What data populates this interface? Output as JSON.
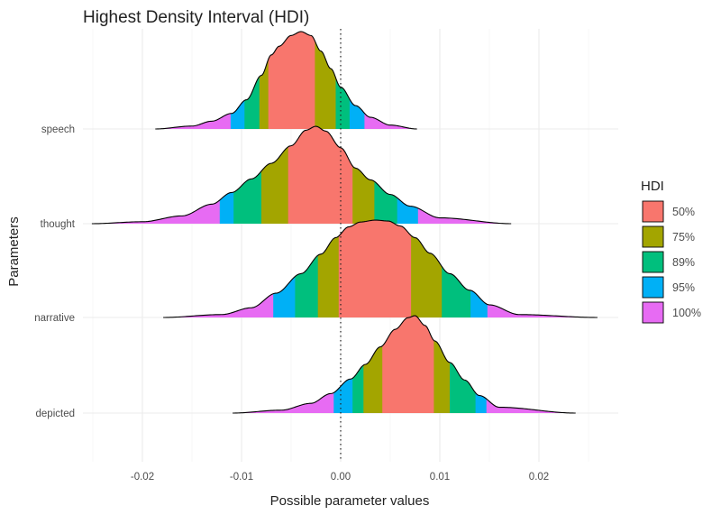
{
  "chart_data": {
    "type": "density-ridges",
    "title": "Highest Density Interval (HDI)",
    "xlabel": "Possible parameter values",
    "ylabel": "Parameters",
    "xlim": [
      -0.026,
      0.028
    ],
    "x_ticks": [
      -0.02,
      -0.01,
      0.0,
      0.01,
      0.02
    ],
    "x_tick_labels": [
      "-0.02",
      "-0.01",
      "0.00",
      "0.01",
      "0.02"
    ],
    "reference_line": 0.0,
    "grid": true,
    "legend": {
      "title": "HDI",
      "position": "right",
      "entries": [
        {
          "label": "50%",
          "color": "#F8766D"
        },
        {
          "label": "75%",
          "color": "#A3A500"
        },
        {
          "label": "89%",
          "color": "#00BF7D"
        },
        {
          "label": "95%",
          "color": "#00B0F6"
        },
        {
          "label": "100%",
          "color": "#E76BF3"
        }
      ]
    },
    "series": [
      {
        "name": "speech",
        "range": [
          -0.0187,
          0.0077
        ],
        "intervals": {
          "50%": [
            -0.0073,
            -0.0026
          ],
          "75%": [
            -0.0082,
            -0.0005
          ],
          "89%": [
            -0.0097,
            0.0009
          ],
          "95%": [
            -0.0111,
            0.0024
          ]
        },
        "density_x": [
          -0.0187,
          -0.015,
          -0.013,
          -0.011,
          -0.0095,
          -0.008,
          -0.007,
          -0.0062,
          -0.005,
          -0.004,
          -0.003,
          -0.002,
          -0.001,
          0.0,
          0.0015,
          0.003,
          0.005,
          0.0077
        ],
        "density_y": [
          0.0,
          0.03,
          0.08,
          0.16,
          0.3,
          0.55,
          0.76,
          0.85,
          0.96,
          1.0,
          0.96,
          0.8,
          0.62,
          0.43,
          0.24,
          0.12,
          0.04,
          0.0
        ]
      },
      {
        "name": "thought",
        "range": [
          -0.0251,
          0.0172
        ],
        "intervals": {
          "50%": [
            -0.0053,
            0.0012
          ],
          "75%": [
            -0.008,
            0.0034
          ],
          "89%": [
            -0.0108,
            0.0057
          ],
          "95%": [
            -0.0122,
            0.0078
          ]
        },
        "density_x": [
          -0.0251,
          -0.02,
          -0.016,
          -0.013,
          -0.011,
          -0.009,
          -0.007,
          -0.005,
          -0.0035,
          -0.0025,
          -0.0015,
          0.0,
          0.0015,
          0.003,
          0.005,
          0.007,
          0.01,
          0.0172
        ],
        "density_y": [
          0.0,
          0.02,
          0.08,
          0.2,
          0.32,
          0.46,
          0.62,
          0.8,
          0.96,
          1.0,
          0.95,
          0.78,
          0.57,
          0.45,
          0.3,
          0.18,
          0.06,
          0.0
        ]
      },
      {
        "name": "narrative",
        "range": [
          -0.0179,
          0.0259
        ],
        "intervals": {
          "50%": [
            -0.0002,
            0.0071
          ],
          "75%": [
            -0.0023,
            0.0102
          ],
          "89%": [
            -0.0046,
            0.0131
          ],
          "95%": [
            -0.0068,
            0.0148
          ]
        },
        "density_x": [
          -0.0179,
          -0.012,
          -0.009,
          -0.0065,
          -0.004,
          -0.002,
          -0.0005,
          0.0008,
          0.002,
          0.0035,
          0.0048,
          0.006,
          0.0075,
          0.009,
          0.011,
          0.013,
          0.015,
          0.018,
          0.0259
        ],
        "density_y": [
          0.0,
          0.03,
          0.1,
          0.25,
          0.45,
          0.65,
          0.82,
          0.93,
          0.98,
          1.0,
          0.99,
          0.94,
          0.82,
          0.66,
          0.45,
          0.28,
          0.13,
          0.03,
          0.0
        ]
      },
      {
        "name": "depicted",
        "range": [
          -0.0109,
          0.0237
        ],
        "intervals": {
          "50%": [
            0.0042,
            0.0094
          ],
          "75%": [
            0.0023,
            0.011
          ],
          "89%": [
            0.0012,
            0.0136
          ],
          "95%": [
            -0.0007,
            0.0147
          ]
        },
        "density_x": [
          -0.0109,
          -0.006,
          -0.003,
          -0.001,
          0.001,
          0.0025,
          0.004,
          0.0055,
          0.0068,
          0.0075,
          0.0085,
          0.0095,
          0.011,
          0.0125,
          0.014,
          0.016,
          0.0237
        ],
        "density_y": [
          0.0,
          0.03,
          0.1,
          0.2,
          0.35,
          0.5,
          0.68,
          0.86,
          0.98,
          1.0,
          0.9,
          0.74,
          0.52,
          0.34,
          0.18,
          0.06,
          0.0
        ]
      }
    ]
  }
}
